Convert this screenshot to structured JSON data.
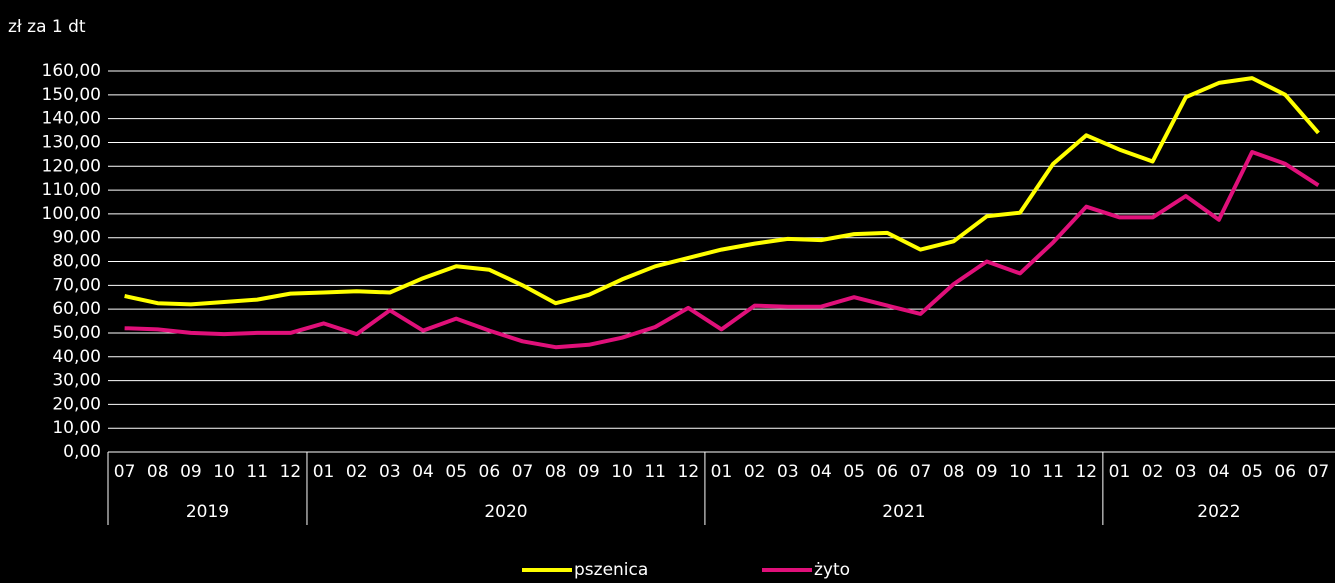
{
  "chart_data": {
    "type": "line",
    "y_label": "zł za 1 dt",
    "categories": [
      "07",
      "08",
      "09",
      "10",
      "11",
      "12",
      "01",
      "02",
      "03",
      "04",
      "05",
      "06",
      "07",
      "08",
      "09",
      "10",
      "11",
      "12",
      "01",
      "02",
      "03",
      "04",
      "05",
      "06",
      "07",
      "08",
      "09",
      "10",
      "11",
      "12",
      "01",
      "02",
      "03",
      "04",
      "05",
      "06",
      "07"
    ],
    "category_years": [
      "2019",
      "2019",
      "2019",
      "2019",
      "2019",
      "2019",
      "2020",
      "2020",
      "2020",
      "2020",
      "2020",
      "2020",
      "2020",
      "2020",
      "2020",
      "2020",
      "2020",
      "2020",
      "2021",
      "2021",
      "2021",
      "2021",
      "2021",
      "2021",
      "2021",
      "2021",
      "2021",
      "2021",
      "2021",
      "2021",
      "2022",
      "2022",
      "2022",
      "2022",
      "2022",
      "2022",
      "2022"
    ],
    "series": [
      {
        "name": "pszenica",
        "color": "#ffff00",
        "values": [
          65.5,
          62.5,
          62,
          63,
          64,
          66.5,
          67,
          67.5,
          67,
          73,
          78,
          76.5,
          70,
          62.5,
          66,
          72.5,
          78,
          81.5,
          85,
          87.5,
          89.5,
          89,
          91.5,
          92,
          85,
          88.5,
          99,
          100.5,
          121,
          133,
          127,
          122,
          149,
          155,
          157,
          150,
          134
        ]
      },
      {
        "name": "żyto",
        "color": "#e0107a",
        "values": [
          52,
          51.5,
          50,
          49.5,
          50,
          50,
          54,
          49.5,
          59.5,
          51,
          56,
          51,
          46.5,
          44,
          45,
          48,
          52.5,
          60.5,
          51.5,
          61.5,
          61,
          61,
          65,
          61.5,
          58,
          70.5,
          80,
          75,
          88,
          103,
          98.5,
          98.5,
          107.5,
          97.5,
          126,
          121,
          112
        ]
      }
    ],
    "ylim": [
      0,
      160
    ],
    "yticks": [
      {
        "value": 0,
        "label": "0,00"
      },
      {
        "value": 10,
        "label": "10,00"
      },
      {
        "value": 20,
        "label": "20,00"
      },
      {
        "value": 30,
        "label": "30,00"
      },
      {
        "value": 40,
        "label": "40,00"
      },
      {
        "value": 50,
        "label": "50,00"
      },
      {
        "value": 60,
        "label": "60,00"
      },
      {
        "value": 70,
        "label": "70,00"
      },
      {
        "value": 80,
        "label": "80,00"
      },
      {
        "value": 90,
        "label": "90,00"
      },
      {
        "value": 100,
        "label": "100,00"
      },
      {
        "value": 110,
        "label": "110,00"
      },
      {
        "value": 120,
        "label": "120,00"
      },
      {
        "value": 130,
        "label": "130,00"
      },
      {
        "value": 140,
        "label": "140,00"
      },
      {
        "value": 150,
        "label": "150,00"
      },
      {
        "value": 160,
        "label": "160,00"
      }
    ],
    "grid": true
  }
}
